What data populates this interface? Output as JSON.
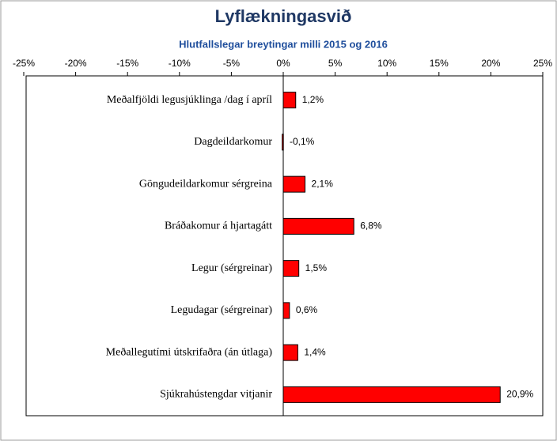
{
  "chart_data": {
    "type": "bar",
    "orientation": "horizontal",
    "title": "Lyflækningasvið",
    "subtitle": "Hlutfallslegar breytingar milli 2015 og 2016",
    "categories": [
      "Meðalfjöldi legusjúklinga /dag í apríl",
      "Dagdeildarkomur",
      "Göngudeildarkomur sérgreina",
      "Bráðakomur á hjartagátt",
      "Legur (sérgreinar)",
      "Legudagar (sérgreinar)",
      "Meðallegutími útskrifaðra (án útlaga)",
      "Sjúkrahústengdar vitjanir"
    ],
    "values": [
      1.2,
      -0.1,
      2.1,
      6.8,
      1.5,
      0.6,
      1.4,
      20.9
    ],
    "value_labels": [
      "1,2%",
      "-0,1%",
      "2,1%",
      "6,8%",
      "1,5%",
      "0,6%",
      "1,4%",
      "20,9%"
    ],
    "color": "#ff0000",
    "xlim": [
      -25,
      25
    ],
    "xticks": [
      {
        "value": -25,
        "label": "-25%"
      },
      {
        "value": -20,
        "label": "-20%"
      },
      {
        "value": -15,
        "label": "-15%"
      },
      {
        "value": -10,
        "label": "-10%"
      },
      {
        "value": -5,
        "label": "-5%"
      },
      {
        "value": 0,
        "label": "0%"
      },
      {
        "value": 5,
        "label": "5%"
      },
      {
        "value": 10,
        "label": "10%"
      },
      {
        "value": 15,
        "label": "15%"
      },
      {
        "value": 20,
        "label": "20%"
      },
      {
        "value": 25,
        "label": "25%"
      }
    ]
  }
}
